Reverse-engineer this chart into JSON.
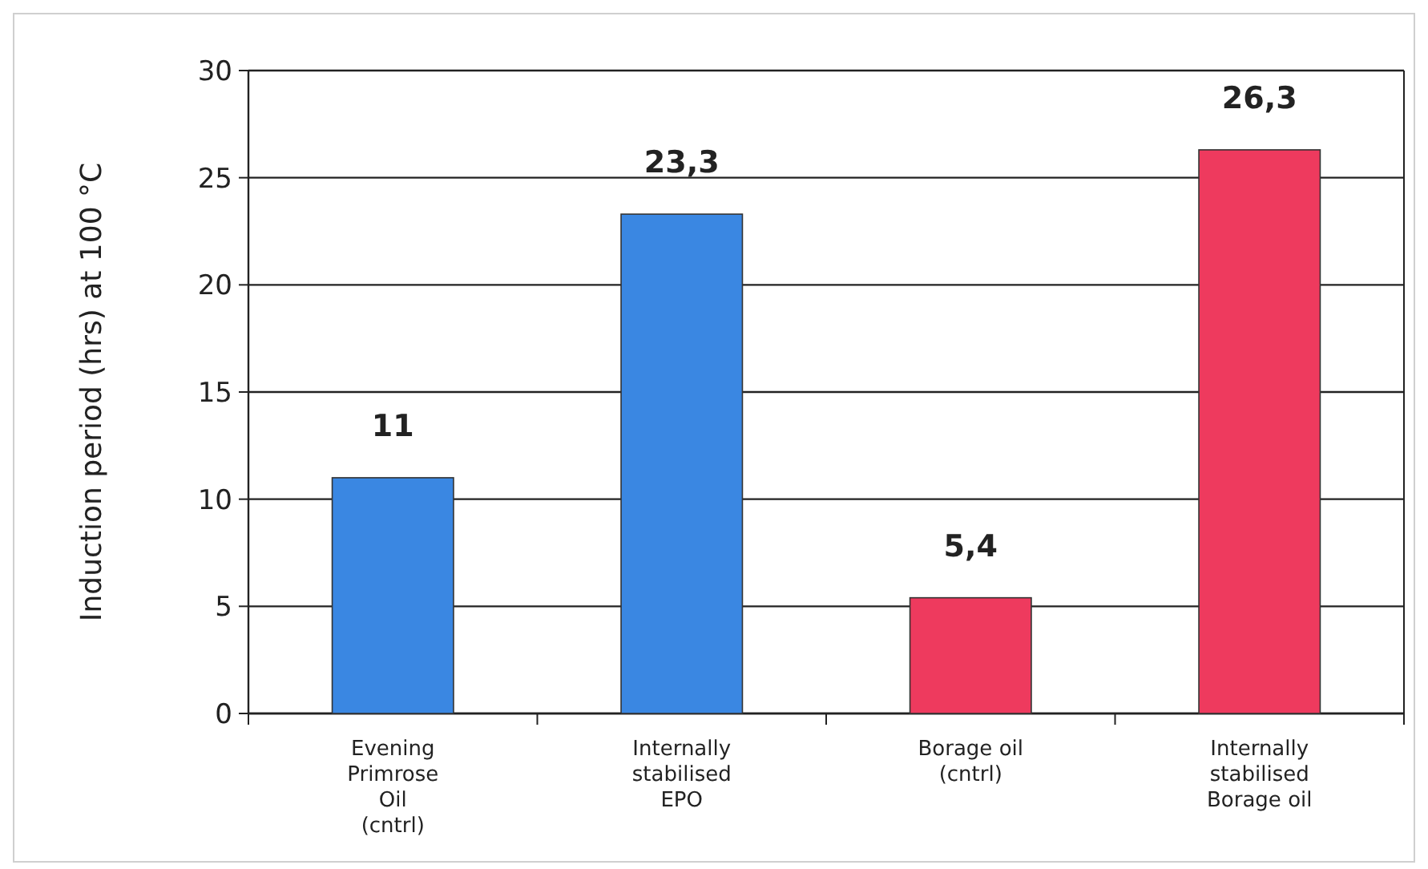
{
  "chart_data": {
    "type": "bar",
    "ylabel": "Induction period (hrs) at 100 °C",
    "categories": [
      "Evening Primrose Oil (cntrl)",
      "Internally stabilised EPO",
      "Borage oil (cntrl)",
      "Internally stabilised Borage oil"
    ],
    "values": [
      11,
      23.3,
      5.4,
      26.3
    ],
    "colors": [
      "#3a87e2",
      "#3a87e2",
      "#ee3a5e",
      "#ee3a5e"
    ],
    "value_labels": [
      "11",
      "23,3",
      "5,4",
      "26,3"
    ],
    "ylim": [
      0,
      30
    ],
    "yticks": [
      0,
      5,
      10,
      15,
      20,
      25,
      30
    ],
    "grid": "y"
  }
}
